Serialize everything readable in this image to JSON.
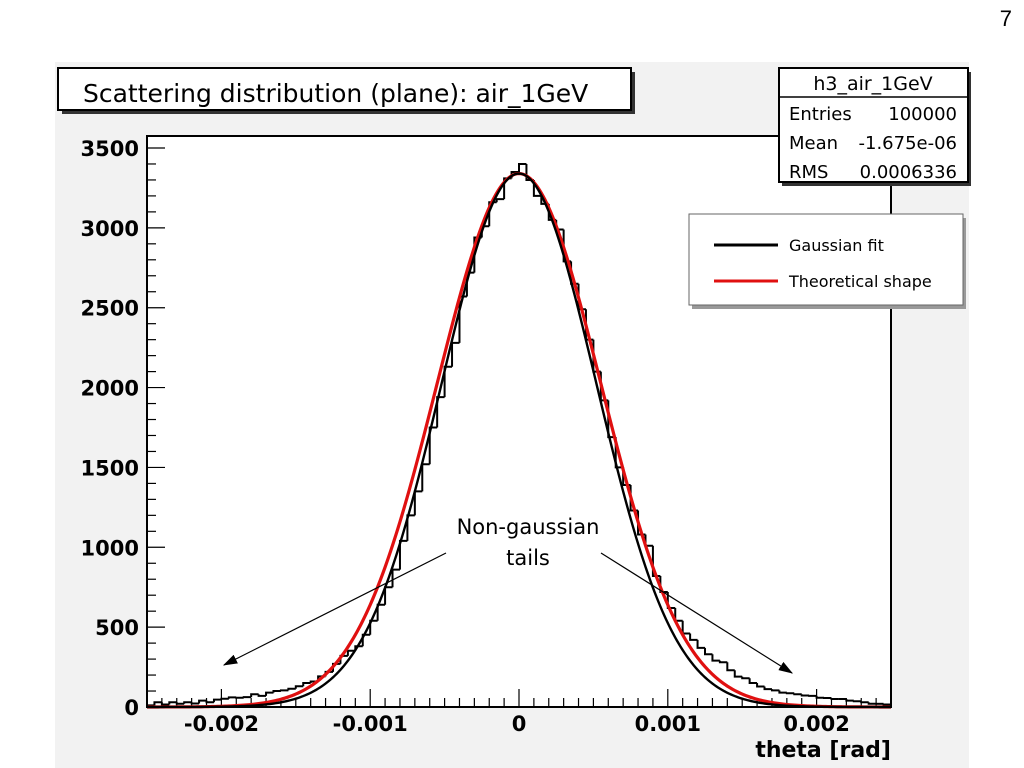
{
  "slide": {
    "page_number": "7"
  },
  "stats_box": {
    "title": "h3_air_1GeV",
    "rows": [
      {
        "label": "Entries",
        "value": "100000"
      },
      {
        "label": "Mean",
        "value": "-1.675e-06"
      },
      {
        "label": "RMS",
        "value": "0.0006336"
      }
    ]
  },
  "annotation": {
    "line1": "Non-gaussian",
    "line2": "tails"
  },
  "colors": {
    "canvas_bg": "#f2f2f2",
    "histogram": "#000000",
    "gaussian_fit": "#000000",
    "theory": "#e01010"
  },
  "chart_data": {
    "type": "line",
    "title": "Scattering distribution (plane): air_1GeV",
    "xlabel": "theta [rad]",
    "ylabel": "",
    "xlim": [
      -0.0025,
      0.0025
    ],
    "ylim": [
      0,
      3600
    ],
    "x_ticks": [
      -0.002,
      -0.001,
      0,
      0.001,
      0.002
    ],
    "x_tick_labels": [
      "-0.002",
      "-0.001",
      "0",
      "0.001",
      "0.002"
    ],
    "y_ticks": [
      0,
      500,
      1000,
      1500,
      2000,
      2500,
      3000,
      3500
    ],
    "y_tick_labels": [
      "0",
      "500",
      "1000",
      "1500",
      "2000",
      "2500",
      "3000",
      "3500"
    ],
    "legend_position": "top-right",
    "series": [
      {
        "name": "Gaussian fit",
        "kind": "fit",
        "amplitude": 3340,
        "mean": 0,
        "sigma": 0.00052
      },
      {
        "name": "Theoretical shape",
        "kind": "theory",
        "amplitude": 3340,
        "mean": 0,
        "sigma": 0.00055
      }
    ],
    "histogram": {
      "bin_edges_range": [
        -0.0025,
        0.0025
      ],
      "bin_width": 5e-05,
      "counts": [
        10,
        30,
        16,
        30,
        20,
        30,
        22,
        40,
        30,
        46,
        52,
        60,
        58,
        62,
        80,
        70,
        90,
        100,
        104,
        114,
        130,
        150,
        160,
        192,
        220,
        270,
        320,
        352,
        380,
        452,
        540,
        640,
        750,
        860,
        1040,
        1200,
        1350,
        1520,
        1750,
        1940,
        2130,
        2280,
        2570,
        2720,
        2940,
        3010,
        3160,
        3180,
        3310,
        3350,
        3400,
        3300,
        3200,
        3150,
        3050,
        2990,
        2790,
        2650,
        2490,
        2300,
        2100,
        1920,
        1690,
        1500,
        1390,
        1230,
        1080,
        1010,
        820,
        720,
        620,
        540,
        460,
        420,
        370,
        330,
        290,
        280,
        230,
        190,
        180,
        150,
        128,
        112,
        104,
        90,
        86,
        80,
        72,
        70,
        58,
        56,
        50,
        50,
        40,
        36,
        30,
        20,
        20,
        16
      ]
    }
  }
}
